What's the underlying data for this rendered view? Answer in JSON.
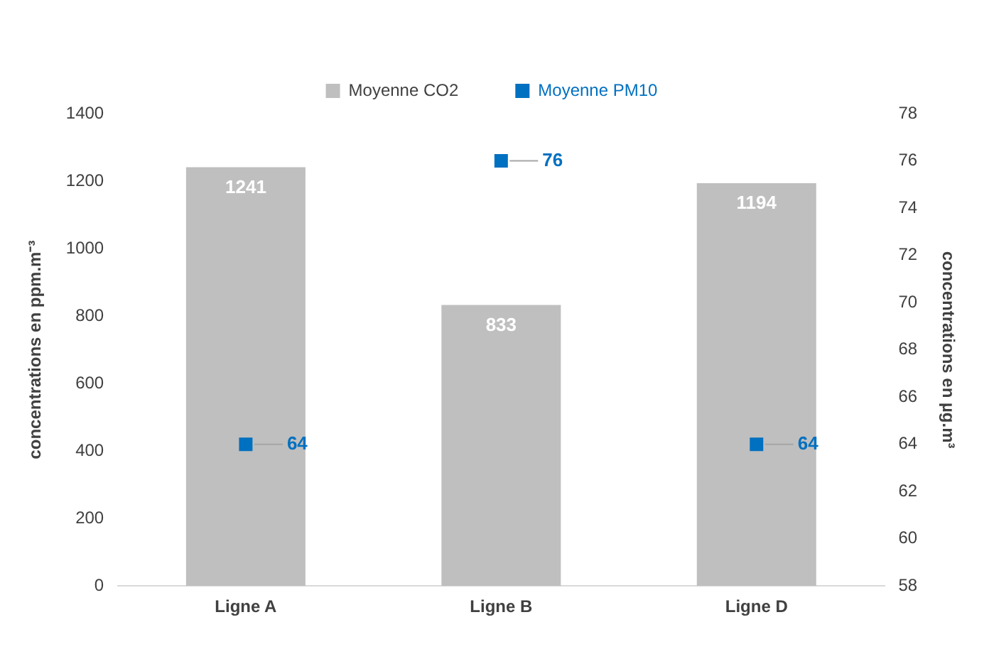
{
  "chart_data": {
    "type": "bar",
    "categories": [
      "Ligne A",
      "Ligne B",
      "Ligne D"
    ],
    "series": [
      {
        "name": "Moyenne CO2",
        "color": "#bfbfbf",
        "values": [
          1241,
          833,
          1194
        ]
      },
      {
        "name": "Moyenne PM10",
        "type": "scatter",
        "axis": "y2",
        "color": "#0070c0",
        "values": [
          64,
          76,
          64
        ]
      }
    ],
    "ylabel": "concentrations en ppm.m⁻³",
    "y2label": "concentrations en µg.m³",
    "ylim": [
      0,
      1400
    ],
    "yticks": [
      0,
      200,
      400,
      600,
      800,
      1000,
      1200,
      1400
    ],
    "y2lim": [
      58,
      78
    ],
    "y2ticks": [
      58,
      60,
      62,
      64,
      66,
      68,
      70,
      72,
      74,
      76,
      78
    ],
    "legend": "top",
    "marker": "square",
    "data_labels": true
  }
}
